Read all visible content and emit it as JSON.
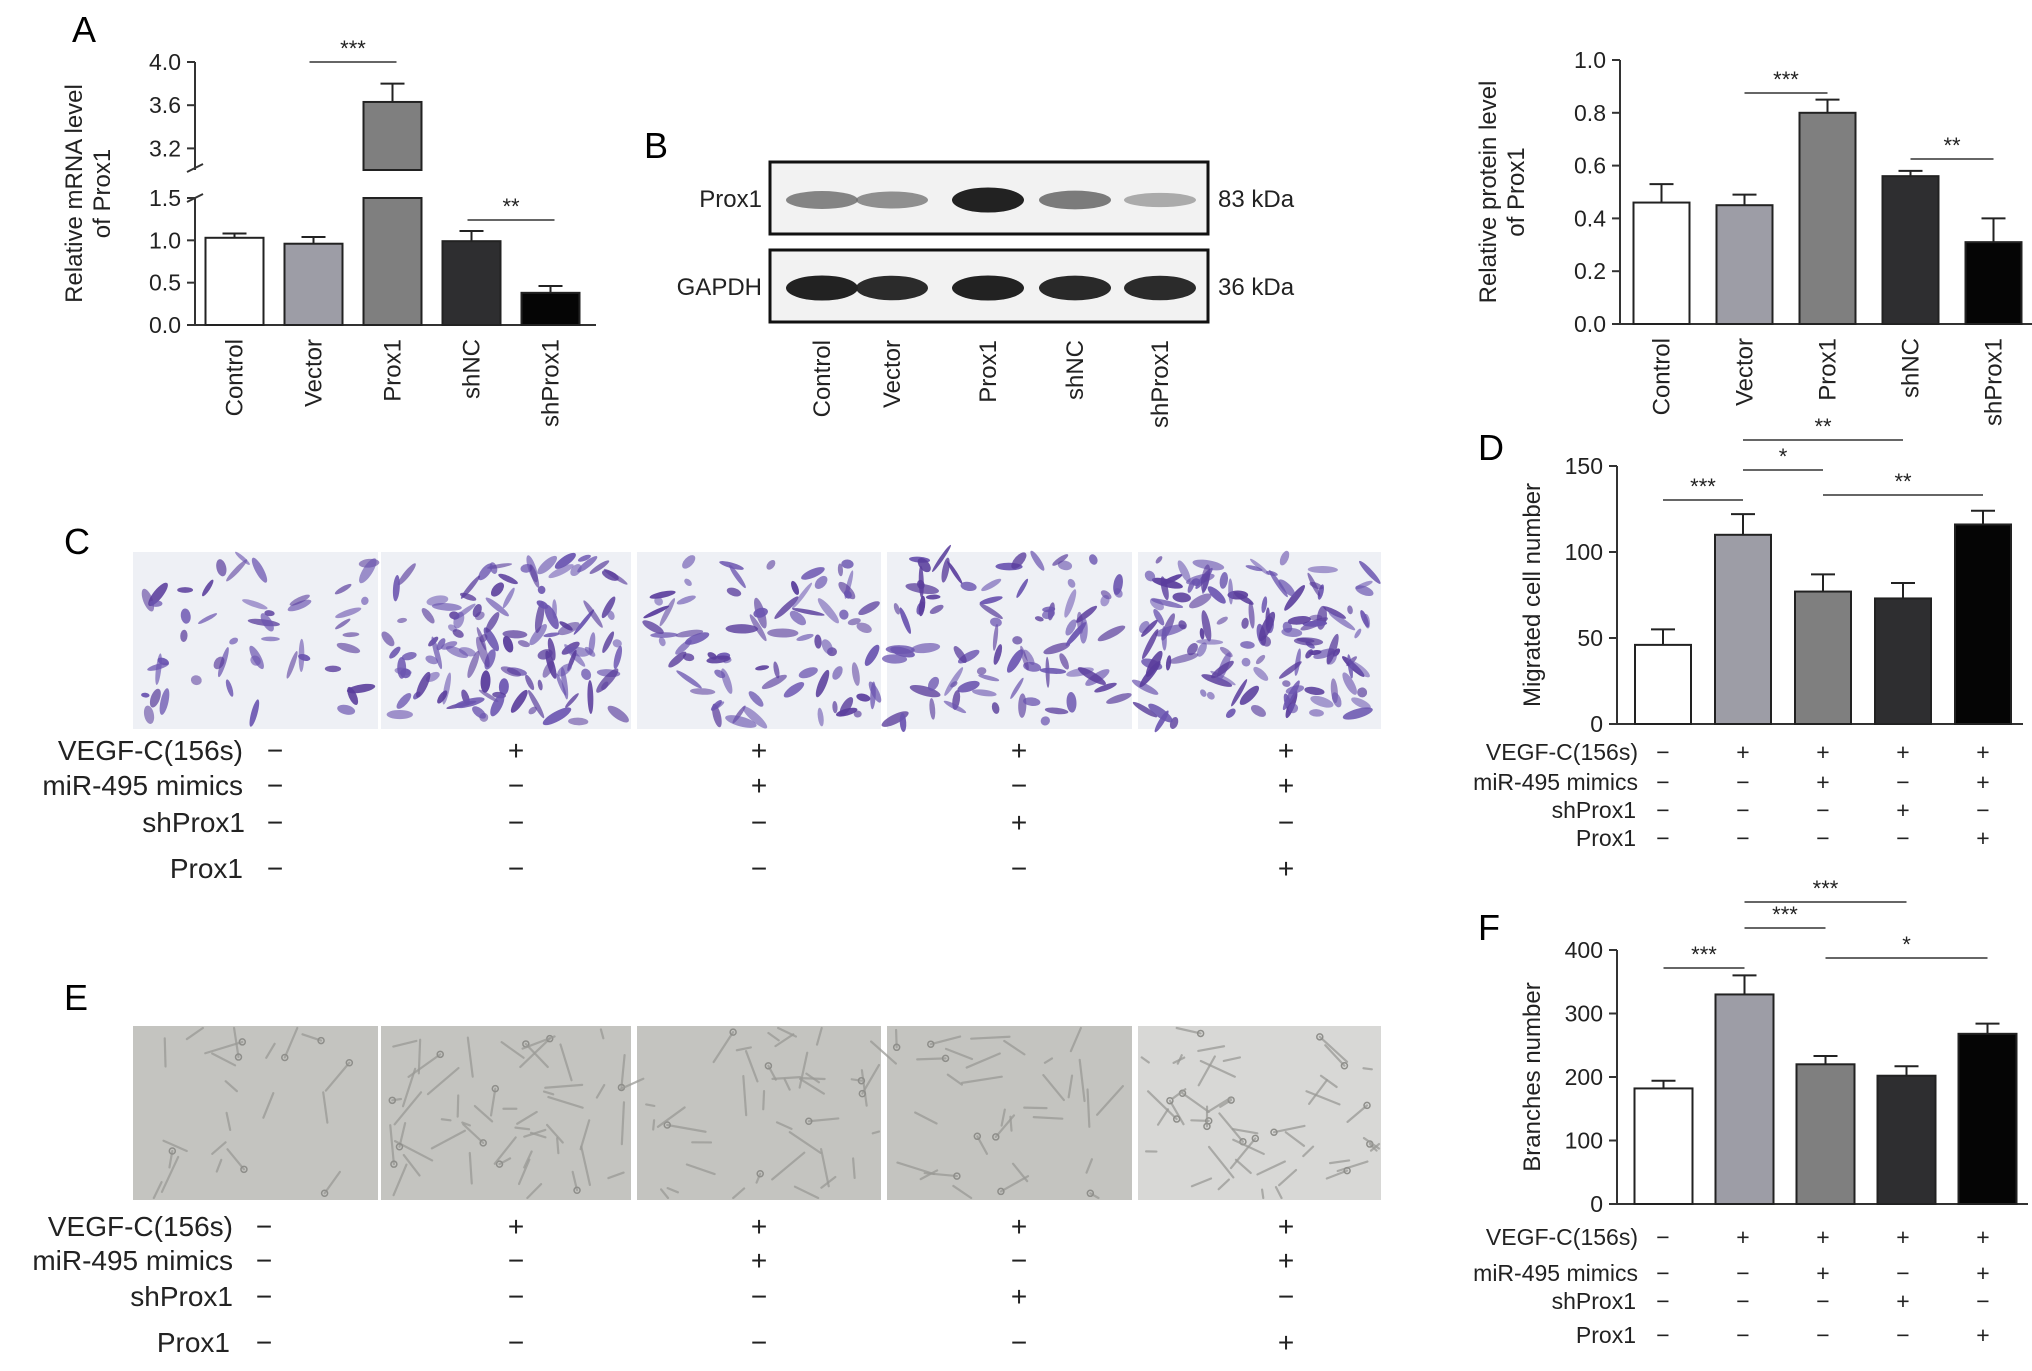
{
  "panel_labels": {
    "a": "A",
    "b": "B",
    "c": "C",
    "d": "D",
    "e": "E",
    "f": "F"
  },
  "colors": {
    "white": "#ffffff",
    "light_gray": "#9d9da6",
    "mid_gray": "#7f7f7f",
    "dark": "#2e2e30",
    "black": "#050505",
    "stain_purple": "#5a3d9c",
    "tube_gray": "#b7b7b3"
  },
  "chart_data": [
    {
      "id": "A",
      "type": "bar",
      "ylabel": "Relative mRNA level of Prox1",
      "ylabel_lines": [
        "Relative mRNA level",
        "of Prox1"
      ],
      "categories": [
        "Control",
        "Vector",
        "Prox1",
        "shNC",
        "shProx1"
      ],
      "values": [
        1.03,
        0.96,
        3.63,
        0.99,
        0.38
      ],
      "errors": [
        0.05,
        0.08,
        0.17,
        0.12,
        0.08
      ],
      "bar_colors": [
        "#ffffff",
        "#9d9da6",
        "#7f7f7f",
        "#2e2e30",
        "#050505"
      ],
      "axis_break": {
        "lower_range": [
          0,
          1.5
        ],
        "upper_range": [
          3.0,
          4.0
        ]
      },
      "yticks_lower": [
        "0.0",
        "0.5",
        "1.0",
        "1.5"
      ],
      "yticks_upper": [
        "3.2",
        "3.6",
        "4.0"
      ],
      "significance": [
        {
          "from": 1,
          "to": 2,
          "label": "***"
        },
        {
          "from": 3,
          "to": 4,
          "label": "**"
        }
      ]
    },
    {
      "id": "B",
      "type": "bar",
      "ylabel": "Relative protein level of Prox1",
      "ylabel_lines": [
        "Relative protein level",
        "of Prox1"
      ],
      "categories": [
        "Control",
        "Vector",
        "Prox1",
        "shNC",
        "shProx1"
      ],
      "values": [
        0.46,
        0.45,
        0.8,
        0.56,
        0.31
      ],
      "errors": [
        0.07,
        0.04,
        0.05,
        0.02,
        0.09
      ],
      "bar_colors": [
        "#ffffff",
        "#9d9da6",
        "#7f7f7f",
        "#2e2e30",
        "#050505"
      ],
      "ylim": [
        0,
        1.0
      ],
      "yticks": [
        "0.0",
        "0.2",
        "0.4",
        "0.6",
        "0.8",
        "1.0"
      ],
      "significance": [
        {
          "from": 1,
          "to": 2,
          "label": "***"
        },
        {
          "from": 3,
          "to": 4,
          "label": "**"
        }
      ]
    },
    {
      "id": "D",
      "type": "bar",
      "ylabel": "Migrated cell number",
      "values": [
        46,
        110,
        77,
        73,
        116
      ],
      "errors": [
        9,
        12,
        10,
        9,
        8
      ],
      "bar_colors": [
        "#ffffff",
        "#9d9da6",
        "#7f7f7f",
        "#2e2e30",
        "#050505"
      ],
      "ylim": [
        0,
        150
      ],
      "yticks": [
        "0",
        "50",
        "100",
        "150"
      ],
      "significance": [
        {
          "from": 0,
          "to": 1,
          "label": "***"
        },
        {
          "from": 1,
          "to": 2,
          "label": "*"
        },
        {
          "from": 1,
          "to": 3,
          "label": "**"
        },
        {
          "from": 2,
          "to": 4,
          "label": "**"
        }
      ]
    },
    {
      "id": "F",
      "type": "bar",
      "ylabel": "Branches number",
      "values": [
        182,
        330,
        220,
        202,
        268
      ],
      "errors": [
        12,
        30,
        13,
        15,
        16
      ],
      "bar_colors": [
        "#ffffff",
        "#9d9da6",
        "#7f7f7f",
        "#2e2e30",
        "#050505"
      ],
      "ylim": [
        0,
        400
      ],
      "yticks": [
        "0",
        "100",
        "200",
        "300",
        "400"
      ],
      "significance": [
        {
          "from": 0,
          "to": 1,
          "label": "***"
        },
        {
          "from": 1,
          "to": 2,
          "label": "***"
        },
        {
          "from": 1,
          "to": 3,
          "label": "***"
        },
        {
          "from": 2,
          "to": 4,
          "label": "*"
        }
      ]
    }
  ],
  "western_blot": {
    "lanes": [
      "Control",
      "Vector",
      "Prox1",
      "shNC",
      "shProx1"
    ],
    "rows": [
      {
        "label": "Prox1",
        "size": "83 kDa",
        "intensity": [
          0.55,
          0.5,
          0.95,
          0.6,
          0.35
        ]
      },
      {
        "label": "GAPDH",
        "size": "36 kDa",
        "intensity": [
          0.95,
          0.92,
          0.95,
          0.93,
          0.92
        ]
      }
    ]
  },
  "treatment_table": {
    "rows": [
      {
        "label": "VEGF-C(156s)",
        "signs": [
          "−",
          "+",
          "+",
          "+",
          "+"
        ]
      },
      {
        "label": "miR-495 mimics",
        "signs": [
          "−",
          "−",
          "+",
          "−",
          "+"
        ]
      },
      {
        "label": "shProx1",
        "signs": [
          "−",
          "−",
          "−",
          "+",
          "−"
        ]
      },
      {
        "label": "Prox1",
        "signs": [
          "−",
          "−",
          "−",
          "−",
          "+"
        ]
      }
    ]
  },
  "images": {
    "migration_density": [
      0.35,
      0.85,
      0.55,
      0.6,
      0.9
    ],
    "tube_density": [
      0.3,
      0.7,
      0.55,
      0.45,
      0.65
    ]
  }
}
